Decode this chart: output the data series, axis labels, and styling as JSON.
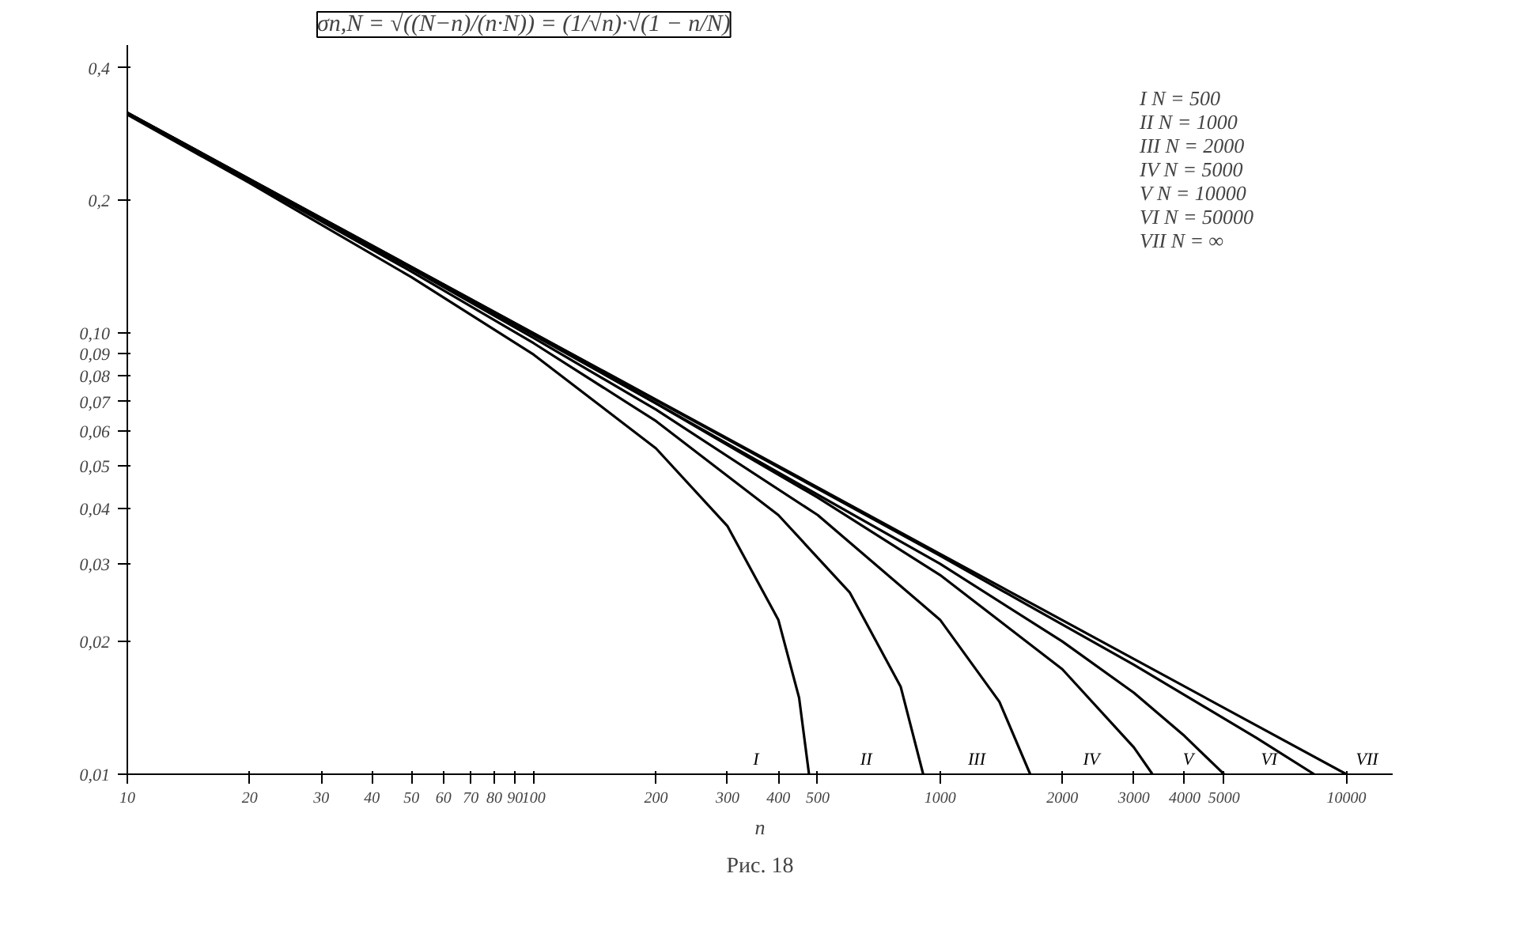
{
  "chart_data": {
    "type": "line",
    "title": "σn,N = √((N−n)/(n·N)) = (1/√n)·√(1 − n/N)",
    "xlabel": "n",
    "log": "xy",
    "grid": false,
    "marker": "none",
    "line_style": "solid",
    "xlim": [
      10,
      13000
    ],
    "ylim": [
      0.01,
      0.45
    ],
    "xticks": [
      10,
      20,
      30,
      40,
      50,
      60,
      70,
      80,
      90,
      100,
      200,
      300,
      400,
      500,
      1000,
      2000,
      3000,
      4000,
      5000,
      10000
    ],
    "yticks": [
      {
        "value": 0.01,
        "label": "0,01"
      },
      {
        "value": 0.02,
        "label": "0,02"
      },
      {
        "value": 0.03,
        "label": "0,03"
      },
      {
        "value": 0.04,
        "label": "0,04"
      },
      {
        "value": 0.05,
        "label": "0,05"
      },
      {
        "value": 0.06,
        "label": "0,06"
      },
      {
        "value": 0.07,
        "label": "0,07"
      },
      {
        "value": 0.08,
        "label": "0,08"
      },
      {
        "value": 0.09,
        "label": "0,09"
      },
      {
        "value": 0.1,
        "label": "0,10"
      },
      {
        "value": 0.2,
        "label": "0,2"
      },
      {
        "value": 0.4,
        "label": "0,4"
      }
    ],
    "series": [
      {
        "name": "I",
        "color": "#000000",
        "x": [
          10,
          20,
          50,
          100,
          200,
          300,
          400,
          450,
          476
        ],
        "values": [
          0.313,
          0.219,
          0.134,
          0.0894,
          0.0548,
          0.0365,
          0.0224,
          0.0149,
          0.01
        ]
      },
      {
        "name": "II",
        "color": "#000000",
        "x": [
          10,
          20,
          50,
          100,
          200,
          400,
          600,
          800,
          909
        ],
        "values": [
          0.315,
          0.221,
          0.138,
          0.0949,
          0.0632,
          0.0387,
          0.0258,
          0.0158,
          0.01
        ]
      },
      {
        "name": "III",
        "color": "#000000",
        "x": [
          10,
          20,
          50,
          100,
          200,
          500,
          1000,
          1400,
          1667
        ],
        "values": [
          0.315,
          0.222,
          0.14,
          0.0975,
          0.0671,
          0.0387,
          0.0224,
          0.0146,
          0.01
        ]
      },
      {
        "name": "IV",
        "color": "#000000",
        "x": [
          10,
          100,
          200,
          500,
          1000,
          2000,
          3000,
          3333
        ],
        "values": [
          0.316,
          0.099,
          0.0693,
          0.0424,
          0.0283,
          0.0173,
          0.0115,
          0.01
        ]
      },
      {
        "name": "V",
        "color": "#000000",
        "x": [
          10,
          100,
          1000,
          2000,
          3000,
          4000,
          5000
        ],
        "values": [
          0.316,
          0.0995,
          0.03,
          0.02,
          0.0153,
          0.0122,
          0.01
        ]
      },
      {
        "name": "VI",
        "color": "#000000",
        "x": [
          10,
          100,
          1000,
          3000,
          6000,
          8333
        ],
        "values": [
          0.316,
          0.0999,
          0.0313,
          0.0177,
          0.0121,
          0.01
        ]
      },
      {
        "name": "VII",
        "color": "#000000",
        "x": [
          10,
          100,
          1000,
          10000
        ],
        "values": [
          0.316,
          0.1,
          0.0316,
          0.01
        ]
      }
    ],
    "annotations": [
      "I  N = 500",
      "II  N = 1000",
      "III  N = 2000",
      "IV  N = 5000",
      "V  N = 10000",
      "VI  N = 50000",
      "VII  N = ∞",
      "Рис. 18"
    ]
  }
}
